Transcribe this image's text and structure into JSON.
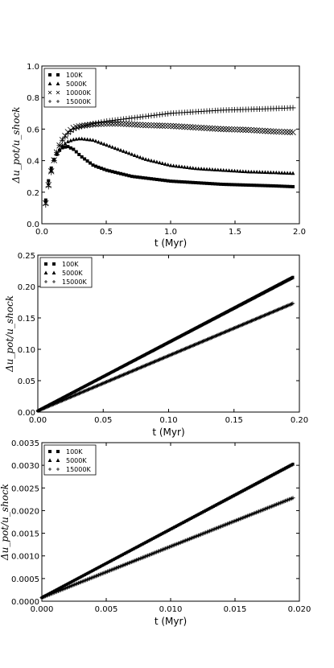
{
  "chart_data": [
    {
      "type": "scatter",
      "xlabel": "t (Myr)",
      "ylabel": "Δu_pot/u_shock",
      "xlim": [
        0.0,
        2.0
      ],
      "ylim": [
        0.0,
        1.0
      ],
      "xticks": [
        "0.0",
        "0.5",
        "1.0",
        "1.5",
        "2.0"
      ],
      "yticks": [
        "0.0",
        "0.2",
        "0.4",
        "0.6",
        "0.8",
        "1.0"
      ],
      "legend_position": "top-left",
      "series": [
        {
          "name": "100K",
          "marker": "square",
          "x": [
            0.03,
            0.06,
            0.1,
            0.15,
            0.2,
            0.25,
            0.3,
            0.4,
            0.5,
            0.6,
            0.7,
            0.8,
            1.0,
            1.2,
            1.4,
            1.6,
            1.8,
            1.95
          ],
          "y": [
            0.15,
            0.32,
            0.42,
            0.48,
            0.49,
            0.47,
            0.43,
            0.37,
            0.34,
            0.32,
            0.3,
            0.29,
            0.27,
            0.26,
            0.25,
            0.245,
            0.24,
            0.235
          ]
        },
        {
          "name": "5000K",
          "marker": "triangle",
          "x": [
            0.03,
            0.06,
            0.1,
            0.15,
            0.2,
            0.25,
            0.3,
            0.4,
            0.5,
            0.6,
            0.7,
            0.8,
            1.0,
            1.2,
            1.4,
            1.6,
            1.8,
            1.95
          ],
          "y": [
            0.14,
            0.3,
            0.42,
            0.49,
            0.52,
            0.535,
            0.54,
            0.53,
            0.5,
            0.47,
            0.44,
            0.41,
            0.37,
            0.35,
            0.34,
            0.33,
            0.325,
            0.32
          ]
        },
        {
          "name": "10000K",
          "marker": "x",
          "x": [
            0.03,
            0.06,
            0.1,
            0.15,
            0.2,
            0.25,
            0.3,
            0.4,
            0.5,
            0.6,
            0.7,
            0.8,
            1.0,
            1.2,
            1.4,
            1.6,
            1.8,
            1.95
          ],
          "y": [
            0.13,
            0.29,
            0.42,
            0.52,
            0.58,
            0.61,
            0.62,
            0.63,
            0.635,
            0.635,
            0.63,
            0.625,
            0.62,
            0.61,
            0.6,
            0.595,
            0.585,
            0.58
          ]
        },
        {
          "name": "15000K",
          "marker": "plus",
          "x": [
            0.03,
            0.06,
            0.1,
            0.15,
            0.2,
            0.25,
            0.3,
            0.4,
            0.5,
            0.6,
            0.7,
            0.8,
            1.0,
            1.2,
            1.4,
            1.6,
            1.8,
            1.95
          ],
          "y": [
            0.12,
            0.28,
            0.42,
            0.52,
            0.57,
            0.6,
            0.615,
            0.635,
            0.65,
            0.66,
            0.67,
            0.68,
            0.7,
            0.71,
            0.72,
            0.725,
            0.73,
            0.735
          ]
        }
      ]
    },
    {
      "type": "scatter",
      "xlabel": "t (Myr)",
      "ylabel": "Δu_pot/u_shock",
      "xlim": [
        0.0,
        0.2
      ],
      "ylim": [
        0.0,
        0.25
      ],
      "xticks": [
        "0.00",
        "0.05",
        "0.10",
        "0.15",
        "0.20"
      ],
      "yticks": [
        "0.00",
        "0.05",
        "0.10",
        "0.15",
        "0.20",
        "0.25"
      ],
      "legend_position": "top-left",
      "series": [
        {
          "name": "100K",
          "marker": "square",
          "x": [
            0.0,
            0.195
          ],
          "y": [
            0.002,
            0.215
          ]
        },
        {
          "name": "5000K",
          "marker": "triangle",
          "x": [
            0.0,
            0.195
          ],
          "y": [
            0.002,
            0.214
          ]
        },
        {
          "name": "15000K",
          "marker": "plus",
          "x": [
            0.0,
            0.195
          ],
          "y": [
            0.002,
            0.173
          ]
        }
      ]
    },
    {
      "type": "scatter",
      "xlabel": "t (Myr)",
      "ylabel": "Δu_pot/u_shock",
      "xlim": [
        0.0,
        0.02
      ],
      "ylim": [
        0.0,
        0.0035
      ],
      "xticks": [
        "0.000",
        "0.005",
        "0.010",
        "0.015",
        "0.020"
      ],
      "yticks": [
        "0.0000",
        "0.0005",
        "0.0010",
        "0.0015",
        "0.0020",
        "0.0025",
        "0.0030",
        "0.0035"
      ],
      "legend_position": "top-left",
      "series": [
        {
          "name": "100K",
          "marker": "square",
          "x": [
            0.0,
            0.0195
          ],
          "y": [
            8e-05,
            0.00303
          ]
        },
        {
          "name": "5000K",
          "marker": "triangle",
          "x": [
            0.0,
            0.0195
          ],
          "y": [
            8e-05,
            0.00302
          ]
        },
        {
          "name": "15000K",
          "marker": "plus",
          "x": [
            0.0,
            0.0195
          ],
          "y": [
            8e-05,
            0.00228
          ]
        }
      ]
    }
  ]
}
